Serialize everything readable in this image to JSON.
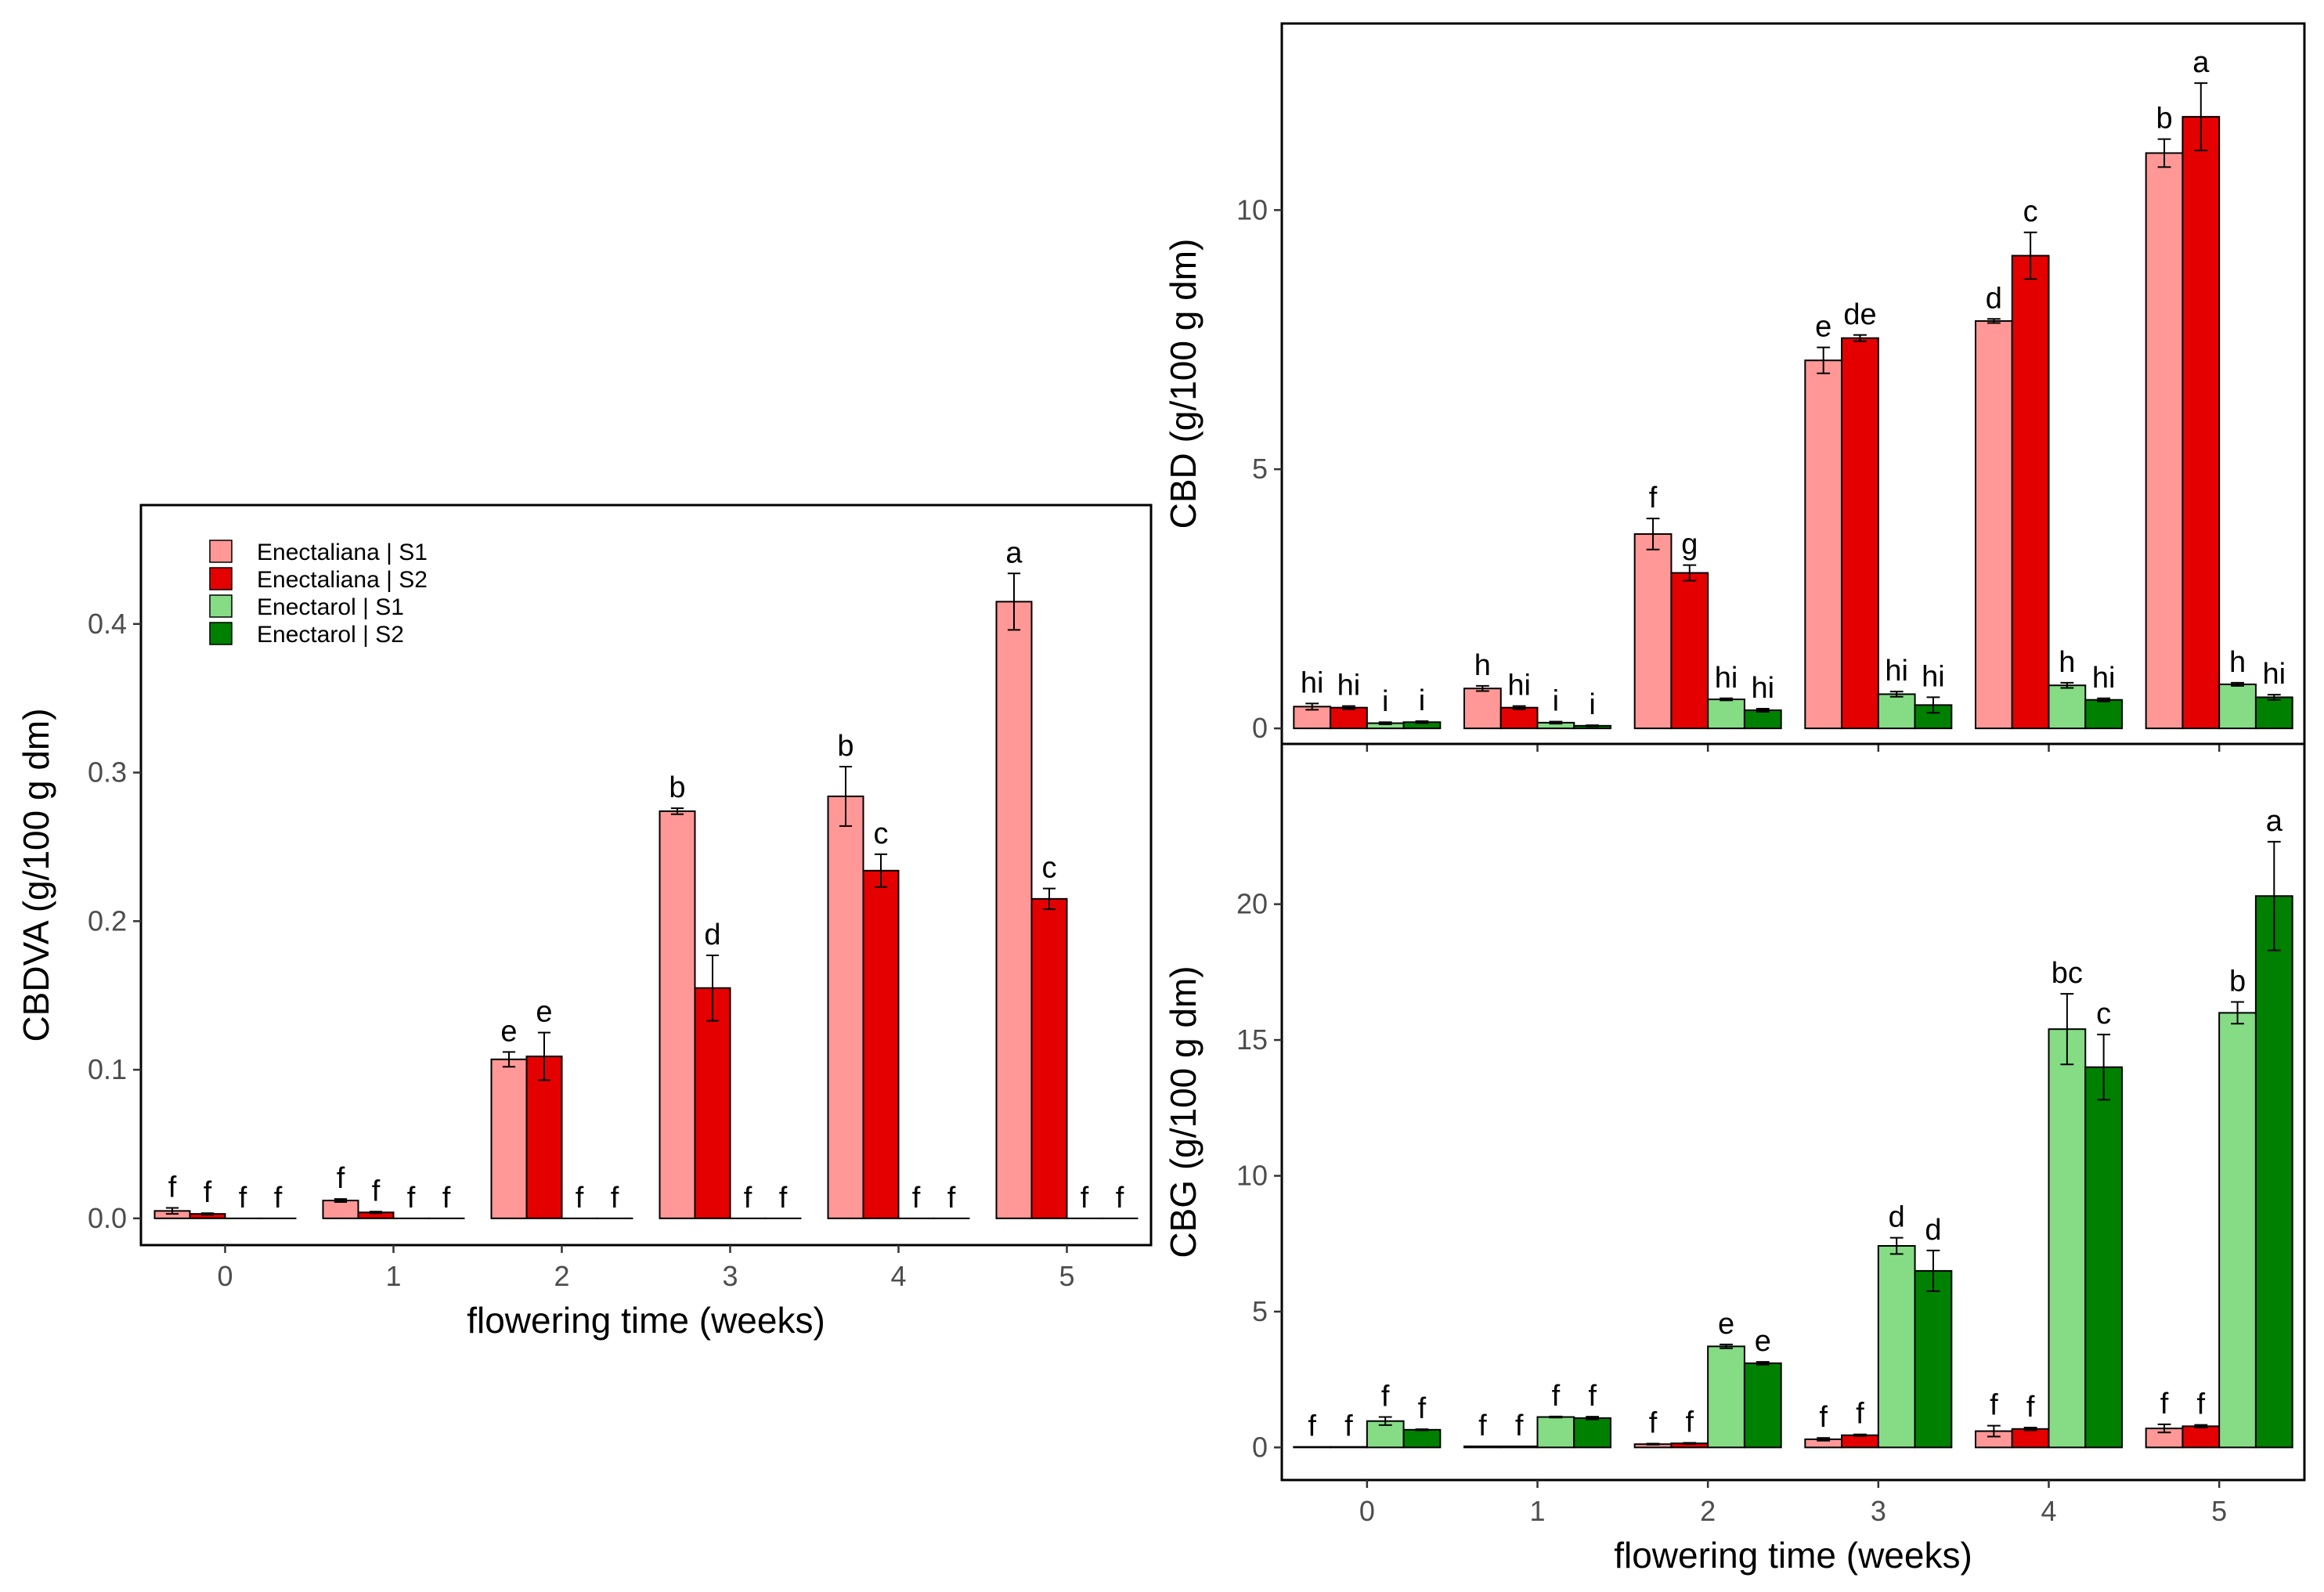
{
  "colors": {
    "series": [
      "#ff9896",
      "#e50000",
      "#85dc85",
      "#008000"
    ],
    "bar_outline": "#000000",
    "tick": "#4d4d4d",
    "text": "#000000"
  },
  "legend": {
    "position": "top-left",
    "entries": [
      "Enectaliana | S1",
      "Enectaliana | S2",
      "Enectarol | S1",
      "Enectarol | S2"
    ]
  },
  "chart_data": [
    {
      "type": "bar",
      "id": "cbdva",
      "xlabel": "flowering time (weeks)",
      "ylabel": "CBDVA (g/100 g dm)",
      "categories": [
        "0",
        "1",
        "2",
        "3",
        "4",
        "5"
      ],
      "ylim": [
        -0.018,
        0.48
      ],
      "yticks": [
        0.0,
        0.1,
        0.2,
        0.3,
        0.4
      ],
      "ytick_labels": [
        "0.0",
        "0.1",
        "0.2",
        "0.3",
        "0.4"
      ],
      "grid": false,
      "series": [
        {
          "name": "Enectaliana | S1",
          "values": [
            0.005,
            0.012,
            0.107,
            0.274,
            0.284,
            0.415
          ],
          "errors": [
            0.002,
            0.001,
            0.005,
            0.002,
            0.02,
            0.019
          ],
          "letters": [
            "f",
            "f",
            "e",
            "b",
            "b",
            "a"
          ]
        },
        {
          "name": "Enectaliana | S2",
          "values": [
            0.003,
            0.004,
            0.109,
            0.155,
            0.234,
            0.215
          ],
          "errors": [
            0.0005,
            0.0005,
            0.016,
            0.022,
            0.011,
            0.007
          ],
          "letters": [
            "f",
            "f",
            "e",
            "d",
            "c",
            "c"
          ]
        },
        {
          "name": "Enectarol | S1",
          "values": [
            0,
            0,
            0,
            0,
            0,
            0
          ],
          "errors": [
            0,
            0,
            0,
            0,
            0,
            0
          ],
          "letters": [
            "f",
            "f",
            "f",
            "f",
            "f",
            "f"
          ]
        },
        {
          "name": "Enectarol | S2",
          "values": [
            0,
            0,
            0,
            0,
            0,
            0
          ],
          "errors": [
            0,
            0,
            0,
            0,
            0,
            0
          ],
          "letters": [
            "f",
            "f",
            "f",
            "f",
            "f",
            "f"
          ]
        }
      ]
    },
    {
      "type": "bar",
      "id": "cbd",
      "xlabel": "",
      "ylabel": "CBD (g/100 g dm)",
      "categories": [
        "0",
        "1",
        "2",
        "3",
        "4",
        "5"
      ],
      "ylim": [
        -0.3,
        13.6
      ],
      "yticks": [
        0,
        5,
        10
      ],
      "ytick_labels": [
        "0",
        "5",
        "10"
      ],
      "grid": false,
      "series": [
        {
          "name": "Enectaliana | S1",
          "values": [
            0.42,
            0.77,
            3.75,
            7.1,
            7.86,
            11.1
          ],
          "errors": [
            0.06,
            0.05,
            0.3,
            0.25,
            0.04,
            0.27
          ],
          "letters": [
            "hi",
            "h",
            "f",
            "e",
            "d",
            "b"
          ]
        },
        {
          "name": "Enectaliana | S2",
          "values": [
            0.4,
            0.4,
            3.0,
            7.53,
            9.12,
            11.8
          ],
          "errors": [
            0.03,
            0.03,
            0.15,
            0.06,
            0.45,
            0.65
          ],
          "letters": [
            "hi",
            "hi",
            "g",
            "de",
            "c",
            "a"
          ]
        },
        {
          "name": "Enectarol | S1",
          "values": [
            0.1,
            0.11,
            0.56,
            0.66,
            0.83,
            0.85
          ],
          "errors": [
            0.02,
            0.02,
            0.02,
            0.05,
            0.05,
            0.03
          ],
          "letters": [
            "i",
            "i",
            "hi",
            "hi",
            "h",
            "h"
          ]
        },
        {
          "name": "Enectarol | S2",
          "values": [
            0.12,
            0.05,
            0.35,
            0.45,
            0.55,
            0.6
          ],
          "errors": [
            0.02,
            0.01,
            0.03,
            0.15,
            0.03,
            0.05
          ],
          "letters": [
            "i",
            "i",
            "hi",
            "hi",
            "hi",
            "hi"
          ]
        }
      ]
    },
    {
      "type": "bar",
      "id": "cbg",
      "xlabel": "flowering time (weeks)",
      "ylabel": "CBG (g/100 g dm)",
      "categories": [
        "0",
        "1",
        "2",
        "3",
        "4",
        "5"
      ],
      "ylim": [
        -1.2,
        25.9
      ],
      "yticks": [
        0,
        5,
        10,
        15,
        20
      ],
      "ytick_labels": [
        "0",
        "5",
        "10",
        "15",
        "20"
      ],
      "grid": false,
      "series": [
        {
          "name": "Enectaliana | S1",
          "values": [
            0.02,
            0.04,
            0.12,
            0.3,
            0.6,
            0.7
          ],
          "errors": [
            0,
            0,
            0.02,
            0.05,
            0.2,
            0.15
          ],
          "letters": [
            "f",
            "f",
            "f",
            "f",
            "f",
            "f"
          ]
        },
        {
          "name": "Enectaliana | S2",
          "values": [
            0.02,
            0.04,
            0.15,
            0.45,
            0.68,
            0.78
          ],
          "errors": [
            0,
            0,
            0.02,
            0.03,
            0.05,
            0.05
          ],
          "letters": [
            "f",
            "f",
            "f",
            "f",
            "f",
            "f"
          ]
        },
        {
          "name": "Enectarol | S1",
          "values": [
            0.97,
            1.12,
            3.72,
            7.42,
            15.4,
            16.0
          ],
          "errors": [
            0.15,
            0.02,
            0.07,
            0.3,
            1.3,
            0.4
          ],
          "letters": [
            "f",
            "f",
            "e",
            "d",
            "bc",
            "b"
          ]
        },
        {
          "name": "Enectarol | S2",
          "values": [
            0.65,
            1.08,
            3.1,
            6.5,
            14.0,
            20.3
          ],
          "errors": [
            0.02,
            0.05,
            0.05,
            0.75,
            1.2,
            2.0
          ],
          "letters": [
            "f",
            "f",
            "e",
            "d",
            "c",
            "a"
          ]
        }
      ]
    }
  ]
}
